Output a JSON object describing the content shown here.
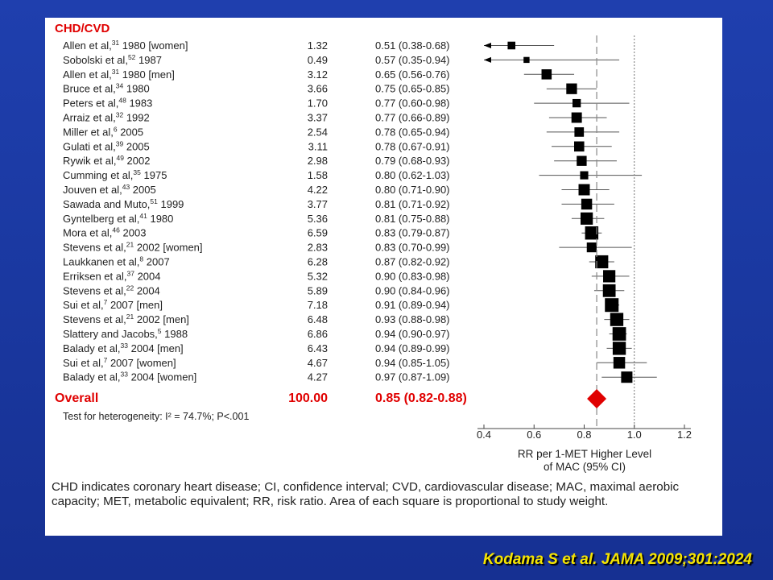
{
  "chart_data": {
    "type": "forest",
    "section_label": "CHD/CVD",
    "studies": [
      {
        "label": "Allen et al,31 1980 [women]",
        "weight": "1.32",
        "rr_text": "0.51 (0.38-0.68)",
        "rr": 0.51,
        "lo": 0.38,
        "hi": 0.68
      },
      {
        "label": "Sobolski et al,52 1987",
        "weight": "0.49",
        "rr_text": "0.57 (0.35-0.94)",
        "rr": 0.57,
        "lo": 0.35,
        "hi": 0.94
      },
      {
        "label": "Allen et al,31 1980 [men]",
        "weight": "3.12",
        "rr_text": "0.65 (0.56-0.76)",
        "rr": 0.65,
        "lo": 0.56,
        "hi": 0.76
      },
      {
        "label": "Bruce et al,34 1980",
        "weight": "3.66",
        "rr_text": "0.75 (0.65-0.85)",
        "rr": 0.75,
        "lo": 0.65,
        "hi": 0.85
      },
      {
        "label": "Peters et al,48 1983",
        "weight": "1.70",
        "rr_text": "0.77 (0.60-0.98)",
        "rr": 0.77,
        "lo": 0.6,
        "hi": 0.98
      },
      {
        "label": "Arraiz et al,32 1992",
        "weight": "3.37",
        "rr_text": "0.77 (0.66-0.89)",
        "rr": 0.77,
        "lo": 0.66,
        "hi": 0.89
      },
      {
        "label": "Miller et al,6 2005",
        "weight": "2.54",
        "rr_text": "0.78 (0.65-0.94)",
        "rr": 0.78,
        "lo": 0.65,
        "hi": 0.94
      },
      {
        "label": "Gulati et al,39 2005",
        "weight": "3.11",
        "rr_text": "0.78 (0.67-0.91)",
        "rr": 0.78,
        "lo": 0.67,
        "hi": 0.91
      },
      {
        "label": "Rywik et al,49 2002",
        "weight": "2.98",
        "rr_text": "0.79 (0.68-0.93)",
        "rr": 0.79,
        "lo": 0.68,
        "hi": 0.93
      },
      {
        "label": "Cumming et al,35 1975",
        "weight": "1.58",
        "rr_text": "0.80 (0.62-1.03)",
        "rr": 0.8,
        "lo": 0.62,
        "hi": 1.03
      },
      {
        "label": "Jouven et al,43 2005",
        "weight": "4.22",
        "rr_text": "0.80 (0.71-0.90)",
        "rr": 0.8,
        "lo": 0.71,
        "hi": 0.9
      },
      {
        "label": "Sawada and Muto,51 1999",
        "weight": "3.77",
        "rr_text": "0.81 (0.71-0.92)",
        "rr": 0.81,
        "lo": 0.71,
        "hi": 0.92
      },
      {
        "label": "Gyntelberg et al,41 1980",
        "weight": "5.36",
        "rr_text": "0.81 (0.75-0.88)",
        "rr": 0.81,
        "lo": 0.75,
        "hi": 0.88
      },
      {
        "label": "Mora et al,46 2003",
        "weight": "6.59",
        "rr_text": "0.83 (0.79-0.87)",
        "rr": 0.83,
        "lo": 0.79,
        "hi": 0.87
      },
      {
        "label": "Stevens et al,21 2002 [women]",
        "weight": "2.83",
        "rr_text": "0.83 (0.70-0.99)",
        "rr": 0.83,
        "lo": 0.7,
        "hi": 0.99
      },
      {
        "label": "Laukkanen et al,8 2007",
        "weight": "6.28",
        "rr_text": "0.87 (0.82-0.92)",
        "rr": 0.87,
        "lo": 0.82,
        "hi": 0.92
      },
      {
        "label": "Erriksen et al,37 2004",
        "weight": "5.32",
        "rr_text": "0.90 (0.83-0.98)",
        "rr": 0.9,
        "lo": 0.83,
        "hi": 0.98
      },
      {
        "label": "Stevens et al,22 2004",
        "weight": "5.89",
        "rr_text": "0.90 (0.84-0.96)",
        "rr": 0.9,
        "lo": 0.84,
        "hi": 0.96
      },
      {
        "label": "Sui et al,7 2007 [men]",
        "weight": "7.18",
        "rr_text": "0.91 (0.89-0.94)",
        "rr": 0.91,
        "lo": 0.89,
        "hi": 0.94
      },
      {
        "label": "Stevens et al,21 2002 [men]",
        "weight": "6.48",
        "rr_text": "0.93 (0.88-0.98)",
        "rr": 0.93,
        "lo": 0.88,
        "hi": 0.98
      },
      {
        "label": "Slattery and Jacobs,5 1988",
        "weight": "6.86",
        "rr_text": "0.94 (0.90-0.97)",
        "rr": 0.94,
        "lo": 0.9,
        "hi": 0.97
      },
      {
        "label": "Balady et al,33 2004 [men]",
        "weight": "6.43",
        "rr_text": "0.94 (0.89-0.99)",
        "rr": 0.94,
        "lo": 0.89,
        "hi": 0.99
      },
      {
        "label": "Sui et al,7 2007 [women]",
        "weight": "4.67",
        "rr_text": "0.94 (0.85-1.05)",
        "rr": 0.94,
        "lo": 0.85,
        "hi": 1.05
      },
      {
        "label": "Balady et al,33 2004 [women]",
        "weight": "4.27",
        "rr_text": "0.97 (0.87-1.09)",
        "rr": 0.97,
        "lo": 0.87,
        "hi": 1.09
      }
    ],
    "overall": {
      "label": "Overall",
      "weight": "100.00",
      "rr_text": "0.85 (0.82-0.88)",
      "rr": 0.85,
      "lo": 0.82,
      "hi": 0.88
    },
    "heterogeneity": "Test for heterogeneity: I² = 74.7%; P<.001",
    "xaxis": {
      "label_line1": "RR per 1-MET Higher Level",
      "label_line2": "of MAC (95% CI)",
      "ticks": [
        "0.4",
        "0.6",
        "0.8",
        "1.0",
        "1.2"
      ],
      "tick_values": [
        0.4,
        0.6,
        0.8,
        1.0,
        1.2
      ],
      "range": [
        0.4,
        1.2
      ],
      "reference_lines": [
        1.0,
        0.85
      ]
    },
    "colors": {
      "highlight": "#e00000",
      "marker": "#000000",
      "background": "#1f3fae",
      "citation": "#f5e400"
    }
  },
  "footnote": "CHD indicates coronary heart disease; CI, confidence interval; CVD, cardiovascular disease; MAC, maximal aerobic capacity; MET, metabolic equivalent; RR, risk ratio. Area of each square is proportional to study weight.",
  "citation": "Kodama S et al.  JAMA 2009;301:2024"
}
